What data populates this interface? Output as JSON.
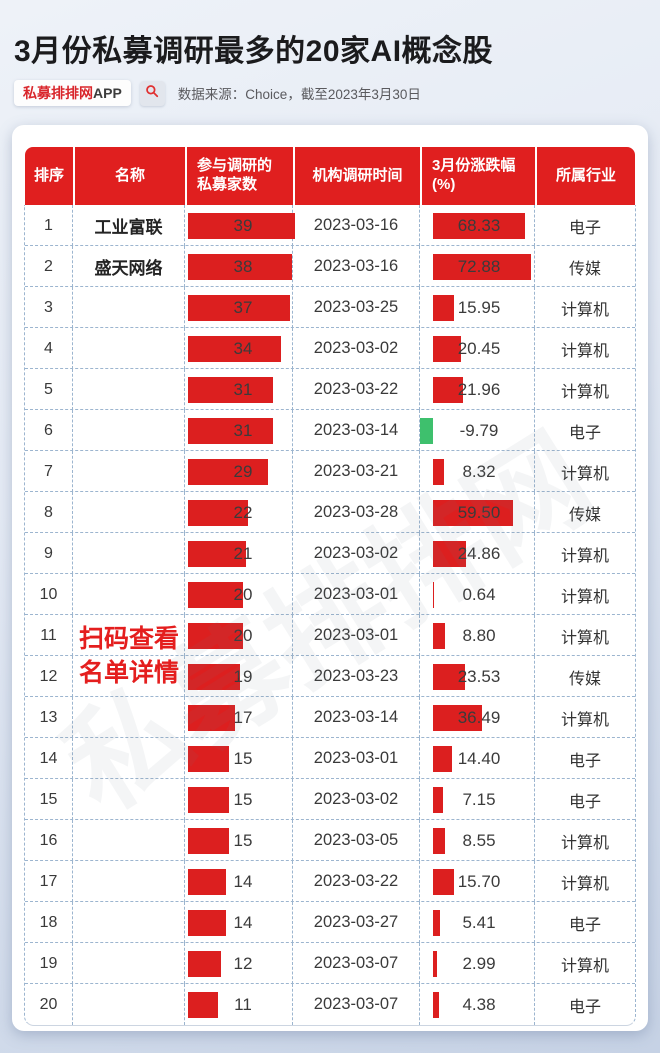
{
  "page": {
    "title": "3月份私募调研最多的20家AI概念股",
    "badge": {
      "brand": "私募排排网",
      "suffix": "APP"
    },
    "source": "数据来源：Choice，截至2023年3月30日"
  },
  "colors": {
    "header_red": "#e01f1f",
    "bar_red": "#dc1f1f",
    "negative_green": "#3ec06d",
    "overlay_red": "#e41e1e",
    "grid_dash": "#9cb5cf"
  },
  "watermark": "私募排排网",
  "table": {
    "headers": [
      "排序",
      "名称",
      "参与调研的\n私募家数",
      "机构调研时间",
      "3月份涨跌幅\n(%)",
      "所属行业"
    ],
    "overlay": "扫码查看\n名单详情"
  },
  "chart_data": {
    "type": "table",
    "title": "3月份私募调研最多的20家AI概念股",
    "columns": [
      "排序",
      "名称",
      "参与调研的私募家数",
      "机构调研时间",
      "3月份涨跌幅(%)",
      "所属行业"
    ],
    "count_bar_max": 39,
    "change_bar_max": 72.88,
    "rows": [
      {
        "rank": 1,
        "name": "工业富联",
        "count": 39,
        "date": "2023-03-16",
        "change": 68.33,
        "industry": "电子"
      },
      {
        "rank": 2,
        "name": "盛天网络",
        "count": 38,
        "date": "2023-03-16",
        "change": 72.88,
        "industry": "传媒"
      },
      {
        "rank": 3,
        "name": "",
        "count": 37,
        "date": "2023-03-25",
        "change": 15.95,
        "industry": "计算机"
      },
      {
        "rank": 4,
        "name": "",
        "count": 34,
        "date": "2023-03-02",
        "change": 20.45,
        "industry": "计算机"
      },
      {
        "rank": 5,
        "name": "",
        "count": 31,
        "date": "2023-03-22",
        "change": 21.96,
        "industry": "计算机"
      },
      {
        "rank": 6,
        "name": "",
        "count": 31,
        "date": "2023-03-14",
        "change": -9.79,
        "industry": "电子"
      },
      {
        "rank": 7,
        "name": "",
        "count": 29,
        "date": "2023-03-21",
        "change": 8.32,
        "industry": "计算机"
      },
      {
        "rank": 8,
        "name": "",
        "count": 22,
        "date": "2023-03-28",
        "change": 59.5,
        "industry": "传媒"
      },
      {
        "rank": 9,
        "name": "",
        "count": 21,
        "date": "2023-03-02",
        "change": 24.86,
        "industry": "计算机"
      },
      {
        "rank": 10,
        "name": "",
        "count": 20,
        "date": "2023-03-01",
        "change": 0.64,
        "industry": "计算机"
      },
      {
        "rank": 11,
        "name": "",
        "count": 20,
        "date": "2023-03-01",
        "change": 8.8,
        "industry": "计算机"
      },
      {
        "rank": 12,
        "name": "",
        "count": 19,
        "date": "2023-03-23",
        "change": 23.53,
        "industry": "传媒"
      },
      {
        "rank": 13,
        "name": "",
        "count": 17,
        "date": "2023-03-14",
        "change": 36.49,
        "industry": "计算机"
      },
      {
        "rank": 14,
        "name": "",
        "count": 15,
        "date": "2023-03-01",
        "change": 14.4,
        "industry": "电子"
      },
      {
        "rank": 15,
        "name": "",
        "count": 15,
        "date": "2023-03-02",
        "change": 7.15,
        "industry": "电子"
      },
      {
        "rank": 16,
        "name": "",
        "count": 15,
        "date": "2023-03-05",
        "change": 8.55,
        "industry": "计算机"
      },
      {
        "rank": 17,
        "name": "",
        "count": 14,
        "date": "2023-03-22",
        "change": 15.7,
        "industry": "计算机"
      },
      {
        "rank": 18,
        "name": "",
        "count": 14,
        "date": "2023-03-27",
        "change": 5.41,
        "industry": "电子"
      },
      {
        "rank": 19,
        "name": "",
        "count": 12,
        "date": "2023-03-07",
        "change": 2.99,
        "industry": "计算机"
      },
      {
        "rank": 20,
        "name": "",
        "count": 11,
        "date": "2023-03-07",
        "change": 4.38,
        "industry": "电子"
      }
    ]
  }
}
